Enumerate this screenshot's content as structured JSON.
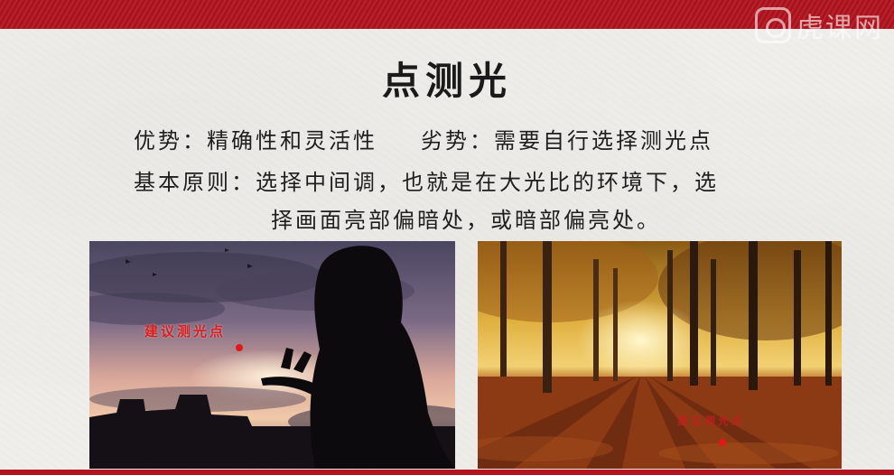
{
  "slide": {
    "title": "点测光",
    "advantage_label": "优势：",
    "advantage_text": "精确性和灵活性",
    "disadvantage_label": "劣势：",
    "disadvantage_text": "需要自行选择测光点",
    "principle_line1": "基本原则：选择中间调，也就是在大光比的环境下，选",
    "principle_line2": "择画面亮部偏暗处，或暗部偏亮处。",
    "photo_left_label": "建议测光点",
    "photo_right_label": "建议测光点"
  },
  "watermark": {
    "text": "虎课网"
  },
  "colors": {
    "accent_red": "#b3141f",
    "label_red": "#d81e1e"
  }
}
